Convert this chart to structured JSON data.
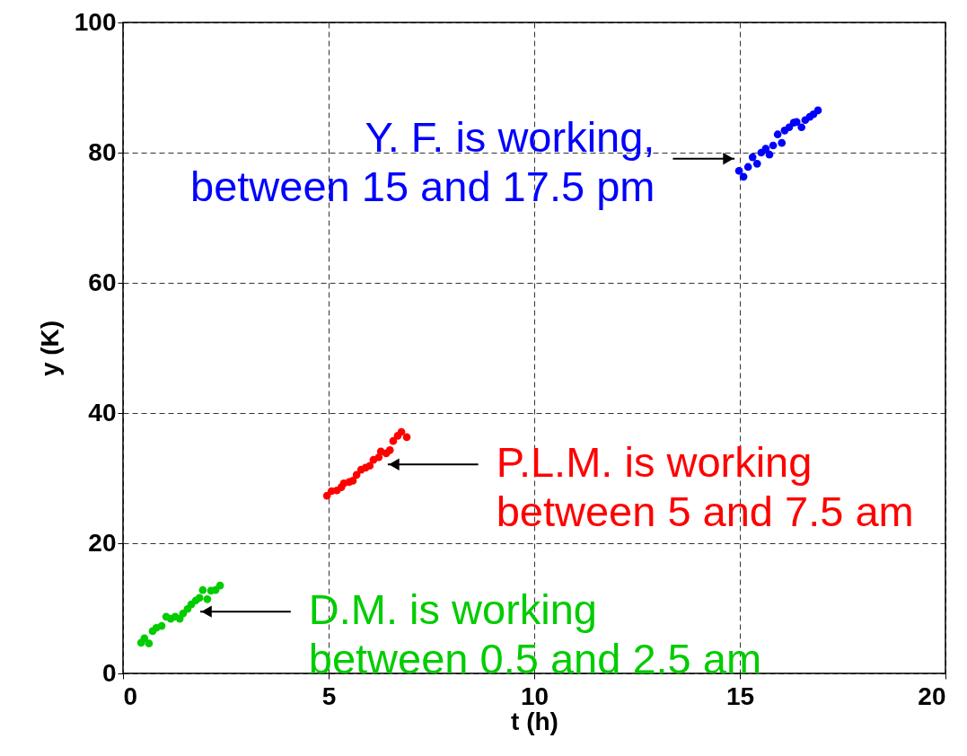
{
  "chart_data": {
    "type": "scatter",
    "xlabel": "t (h)",
    "ylabel": "y (K)",
    "xlim": [
      0,
      20
    ],
    "ylim": [
      0,
      100
    ],
    "xticks": [
      0,
      5,
      10,
      15,
      20
    ],
    "yticks": [
      0,
      20,
      40,
      60,
      80,
      100
    ],
    "grid": true,
    "marker": "circle",
    "series": [
      {
        "color": "#00cc00",
        "x": [
          0.44,
          0.52,
          0.63,
          0.72,
          0.81,
          0.94,
          1.05,
          1.16,
          1.27,
          1.38,
          1.46,
          1.57,
          1.66,
          1.77,
          1.86,
          1.94,
          2.05,
          2.14,
          2.25,
          2.36
        ],
        "values": [
          4.7,
          5.4,
          4.6,
          6.5,
          7.0,
          7.3,
          8.7,
          8.4,
          8.7,
          8.4,
          9.2,
          9.9,
          10.6,
          11.2,
          11.6,
          12.8,
          11.4,
          12.7,
          12.8,
          13.5
        ]
      },
      {
        "color": "#ff0000",
        "x": [
          4.96,
          5.07,
          5.2,
          5.31,
          5.37,
          5.5,
          5.59,
          5.68,
          5.79,
          5.9,
          6.0,
          6.09,
          6.22,
          6.27,
          6.4,
          6.49,
          6.57,
          6.68,
          6.77,
          6.9
        ],
        "values": [
          27.3,
          28.0,
          28.1,
          28.6,
          29.2,
          29.4,
          29.6,
          30.5,
          31.3,
          31.6,
          31.9,
          32.8,
          33.2,
          34.1,
          33.8,
          34.3,
          35.7,
          36.5,
          37.1,
          36.3
        ]
      },
      {
        "color": "#0000ff",
        "x": [
          14.98,
          15.09,
          15.2,
          15.31,
          15.42,
          15.52,
          15.63,
          15.72,
          15.81,
          15.92,
          16.02,
          16.09,
          16.2,
          16.31,
          16.38,
          16.5,
          16.59,
          16.7,
          16.79,
          16.9
        ],
        "values": [
          77.2,
          76.3,
          77.8,
          79.3,
          78.3,
          80.0,
          80.6,
          79.7,
          81.1,
          82.8,
          81.5,
          83.4,
          83.9,
          84.6,
          84.7,
          83.9,
          85.0,
          85.5,
          85.9,
          86.5
        ]
      }
    ],
    "annotations": [
      "D.M. is working\nbetween 0.5 and 2.5 am",
      "P.L.M. is working\nbetween 5 and 7.5 am",
      "Y. F. is working,\nbetween 15 and 17.5 pm"
    ]
  }
}
